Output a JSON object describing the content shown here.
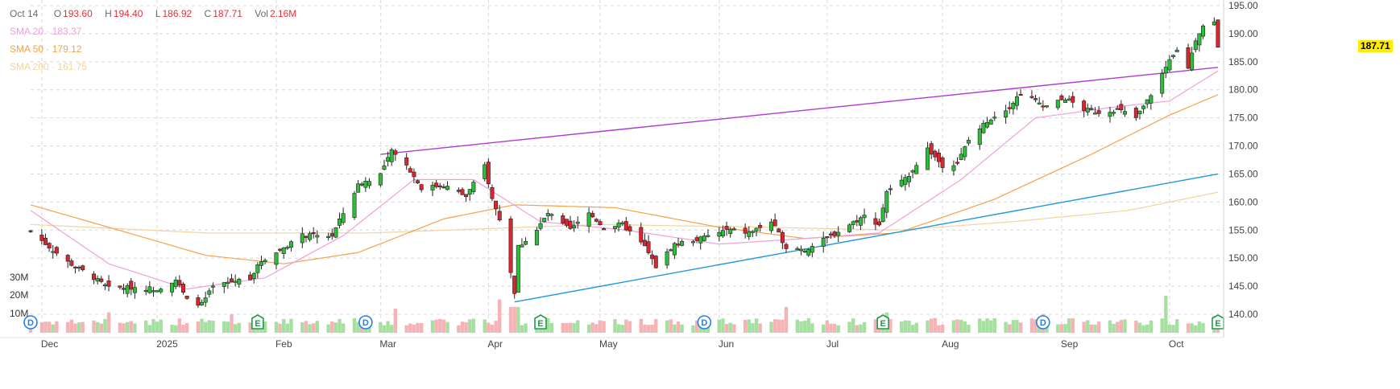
{
  "legend": {
    "date": "Oct 14",
    "open_label": "O",
    "open": "193.60",
    "high_label": "H",
    "high": "194.40",
    "low_label": "L",
    "low": "186.92",
    "close_label": "C",
    "close": "187.71",
    "vol_label": "Vol",
    "vol": "2.16M",
    "sma20_label": "SMA 20",
    "sma20": "183.37",
    "sma50_label": "SMA 50",
    "sma50": "179.12",
    "sma200_label": "SMA 200",
    "sma200": "161.75",
    "sep": "·"
  },
  "last_price": "187.71",
  "colors": {
    "up": "#2dbd3a",
    "down": "#d9262f",
    "vol_up": "#a6e0a0",
    "vol_down": "#f5b3b5",
    "sma20": "#f0a0d8",
    "sma50": "#f5a14a",
    "sma200": "#f3d39e",
    "trend_upper": "#b03ad0",
    "trend_lower": "#1f9ad6",
    "grid": "#d8d8d8"
  },
  "chart_data": {
    "type": "candlestick",
    "y_axis": {
      "ticks": [
        140,
        145,
        150,
        155,
        160,
        165,
        170,
        175,
        180,
        185,
        190,
        195
      ],
      "range": [
        138,
        196
      ]
    },
    "volume_axis": {
      "labels": [
        "10M",
        "20M",
        "30M"
      ],
      "values": [
        10,
        20,
        30
      ]
    },
    "x_labels": [
      "Dec",
      "2025",
      "Feb",
      "Mar",
      "Apr",
      "May",
      "Jun",
      "Jul",
      "Aug",
      "Sep",
      "Oct"
    ],
    "x_label_dates": [
      "2024-12-02",
      "2025-01-02",
      "2025-02-03",
      "2025-03-03",
      "2025-04-01",
      "2025-05-01",
      "2025-06-02",
      "2025-07-01",
      "2025-08-01",
      "2025-09-02",
      "2025-10-01"
    ],
    "start_date": "2024-11-29",
    "end_date": "2025-10-14",
    "close_anchors": [
      [
        "2024-11-29",
        154.8
      ],
      [
        "2024-12-04",
        152.0
      ],
      [
        "2024-12-09",
        149.3
      ],
      [
        "2024-12-16",
        146.5
      ],
      [
        "2024-12-20",
        144.6
      ],
      [
        "2024-12-27",
        144.8
      ],
      [
        "2025-01-02",
        144.5
      ],
      [
        "2025-01-07",
        146.2
      ],
      [
        "2025-01-10",
        142.5
      ],
      [
        "2025-01-14",
        141.8
      ],
      [
        "2025-01-17",
        144.8
      ],
      [
        "2025-01-23",
        146.0
      ],
      [
        "2025-01-27",
        146.5
      ],
      [
        "2025-01-30",
        149.5
      ],
      [
        "2025-02-04",
        151.5
      ],
      [
        "2025-02-10",
        154.0
      ],
      [
        "2025-02-18",
        154.0
      ],
      [
        "2025-02-21",
        158.0
      ],
      [
        "2025-02-25",
        163.0
      ],
      [
        "2025-03-03",
        165.0
      ],
      [
        "2025-03-06",
        169.0
      ],
      [
        "2025-03-10",
        166.5
      ],
      [
        "2025-03-14",
        162.5
      ],
      [
        "2025-03-20",
        163.0
      ],
      [
        "2025-03-26",
        161.0
      ],
      [
        "2025-03-31",
        166.5
      ],
      [
        "2025-04-02",
        160.5
      ],
      [
        "2025-04-04",
        157.0
      ],
      [
        "2025-04-08",
        144.0
      ],
      [
        "2025-04-09",
        152.0
      ],
      [
        "2025-04-14",
        155.0
      ],
      [
        "2025-04-17",
        158.0
      ],
      [
        "2025-04-23",
        155.0
      ],
      [
        "2025-04-28",
        158.0
      ],
      [
        "2025-05-02",
        155.5
      ],
      [
        "2025-05-07",
        156.0
      ],
      [
        "2025-05-13",
        152.0
      ],
      [
        "2025-05-16",
        148.5
      ],
      [
        "2025-05-21",
        152.5
      ],
      [
        "2025-05-28",
        153.5
      ],
      [
        "2025-06-04",
        155.0
      ],
      [
        "2025-06-10",
        154.5
      ],
      [
        "2025-06-16",
        156.5
      ],
      [
        "2025-06-20",
        152.0
      ],
      [
        "2025-06-25",
        151.5
      ],
      [
        "2025-07-01",
        153.5
      ],
      [
        "2025-07-07",
        156.0
      ],
      [
        "2025-07-11",
        157.5
      ],
      [
        "2025-07-15",
        156.0
      ],
      [
        "2025-07-17",
        162.0
      ],
      [
        "2025-07-22",
        164.0
      ],
      [
        "2025-07-28",
        169.5
      ],
      [
        "2025-08-01",
        166.5
      ],
      [
        "2025-08-05",
        167.0
      ],
      [
        "2025-08-08",
        171.0
      ],
      [
        "2025-08-13",
        174.5
      ],
      [
        "2025-08-19",
        177.0
      ],
      [
        "2025-08-22",
        179.5
      ],
      [
        "2025-08-26",
        178.0
      ],
      [
        "2025-08-29",
        177.0
      ],
      [
        "2025-09-03",
        178.5
      ],
      [
        "2025-09-08",
        176.5
      ],
      [
        "2025-09-12",
        176.0
      ],
      [
        "2025-09-17",
        176.5
      ],
      [
        "2025-09-22",
        175.0
      ],
      [
        "2025-09-25",
        178.0
      ],
      [
        "2025-09-30",
        184.0
      ],
      [
        "2025-10-03",
        187.0
      ],
      [
        "2025-10-06",
        184.0
      ],
      [
        "2025-10-08",
        189.0
      ],
      [
        "2025-10-10",
        191.5
      ],
      [
        "2025-10-13",
        192.0
      ],
      [
        "2025-10-14",
        187.71
      ]
    ],
    "sma20_anchors": [
      [
        "2024-11-29",
        158.5
      ],
      [
        "2024-12-20",
        149.0
      ],
      [
        "2025-01-10",
        144.5
      ],
      [
        "2025-01-31",
        146.5
      ],
      [
        "2025-02-21",
        154.0
      ],
      [
        "2025-03-12",
        164.0
      ],
      [
        "2025-03-28",
        164.0
      ],
      [
        "2025-04-15",
        156.5
      ],
      [
        "2025-05-08",
        155.0
      ],
      [
        "2025-06-02",
        152.5
      ],
      [
        "2025-06-25",
        153.5
      ],
      [
        "2025-07-15",
        154.5
      ],
      [
        "2025-08-06",
        164.0
      ],
      [
        "2025-08-26",
        175.0
      ],
      [
        "2025-09-17",
        177.0
      ],
      [
        "2025-10-01",
        178.0
      ],
      [
        "2025-10-14",
        183.37
      ]
    ],
    "sma50_anchors": [
      [
        "2024-11-29",
        159.5
      ],
      [
        "2024-12-20",
        155.5
      ],
      [
        "2025-01-15",
        150.5
      ],
      [
        "2025-02-05",
        149.0
      ],
      [
        "2025-02-25",
        151.0
      ],
      [
        "2025-03-20",
        157.0
      ],
      [
        "2025-04-08",
        159.5
      ],
      [
        "2025-05-05",
        159.0
      ],
      [
        "2025-06-02",
        155.5
      ],
      [
        "2025-06-25",
        153.5
      ],
      [
        "2025-07-20",
        154.5
      ],
      [
        "2025-08-15",
        160.5
      ],
      [
        "2025-09-10",
        168.5
      ],
      [
        "2025-10-01",
        175.5
      ],
      [
        "2025-10-14",
        179.12
      ]
    ],
    "sma200_anchors": [
      [
        "2024-11-29",
        156.0
      ],
      [
        "2025-01-15",
        154.5
      ],
      [
        "2025-03-01",
        154.5
      ],
      [
        "2025-05-01",
        156.0
      ],
      [
        "2025-06-15",
        155.5
      ],
      [
        "2025-07-20",
        155.0
      ],
      [
        "2025-08-20",
        156.5
      ],
      [
        "2025-09-20",
        158.5
      ],
      [
        "2025-10-14",
        161.75
      ]
    ],
    "trendlines": [
      {
        "name": "upper",
        "from": [
          "2025-03-03",
          168.5
        ],
        "to": [
          "2025-10-14",
          184.0
        ]
      },
      {
        "name": "lower",
        "from": [
          "2025-04-08",
          142.2
        ],
        "to": [
          "2025-10-14",
          165.0
        ]
      }
    ],
    "volume_spikes": [
      [
        "2024-12-20",
        11
      ],
      [
        "2025-01-22",
        10
      ],
      [
        "2025-03-07",
        13
      ],
      [
        "2025-04-04",
        18
      ],
      [
        "2025-04-07",
        14
      ],
      [
        "2025-04-08",
        14
      ],
      [
        "2025-04-09",
        14
      ],
      [
        "2025-06-20",
        14
      ],
      [
        "2025-07-17",
        11
      ],
      [
        "2025-08-28",
        10
      ],
      [
        "2025-09-30",
        20
      ],
      [
        "2025-10-13",
        9
      ]
    ],
    "event_markers": [
      {
        "type": "D",
        "date": "2024-11-29"
      },
      {
        "type": "E",
        "date": "2025-01-29"
      },
      {
        "type": "D",
        "date": "2025-02-27"
      },
      {
        "type": "E",
        "date": "2025-04-15"
      },
      {
        "type": "D",
        "date": "2025-05-29"
      },
      {
        "type": "E",
        "date": "2025-07-16"
      },
      {
        "type": "D",
        "date": "2025-08-28"
      },
      {
        "type": "E",
        "date": "2025-10-14"
      }
    ]
  }
}
